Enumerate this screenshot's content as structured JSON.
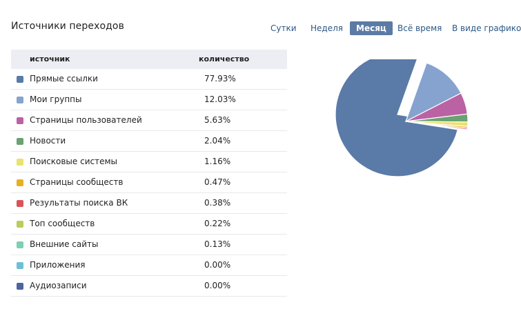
{
  "header": {
    "title": "Источники переходов"
  },
  "tabs": [
    {
      "label": "Сутки",
      "active": false
    },
    {
      "label": "Неделя",
      "active": false
    },
    {
      "label": "Месяц",
      "active": true
    },
    {
      "label": "Всё время",
      "active": false
    },
    {
      "label": "В виде графиков",
      "active": false
    }
  ],
  "table": {
    "col_source": "источник",
    "col_count": "количество"
  },
  "chart_data": {
    "type": "pie",
    "categories": [
      "Прямые ссылки",
      "Мои группы",
      "Страницы пользователей",
      "Новости",
      "Поисковые системы",
      "Страницы сообществ",
      "Результаты поиска ВК",
      "Топ сообществ",
      "Внешние сайты",
      "Приложения",
      "Аудиозаписи"
    ],
    "values": [
      77.93,
      12.03,
      5.63,
      2.04,
      1.16,
      0.47,
      0.38,
      0.22,
      0.13,
      0.0,
      0.0
    ],
    "labels": [
      "77.93%",
      "12.03%",
      "5.63%",
      "2.04%",
      "1.16%",
      "0.47%",
      "0.38%",
      "0.22%",
      "0.13%",
      "0.00%",
      "0.00%"
    ],
    "colors": [
      "#5a7aa8",
      "#86a3cf",
      "#bb62a4",
      "#6aa272",
      "#e8e26f",
      "#e6b023",
      "#d95457",
      "#b9cd5a",
      "#7ed0b4",
      "#6cc0d4",
      "#4d64a0"
    ],
    "exploded_index": 0,
    "legend": "left-table"
  }
}
